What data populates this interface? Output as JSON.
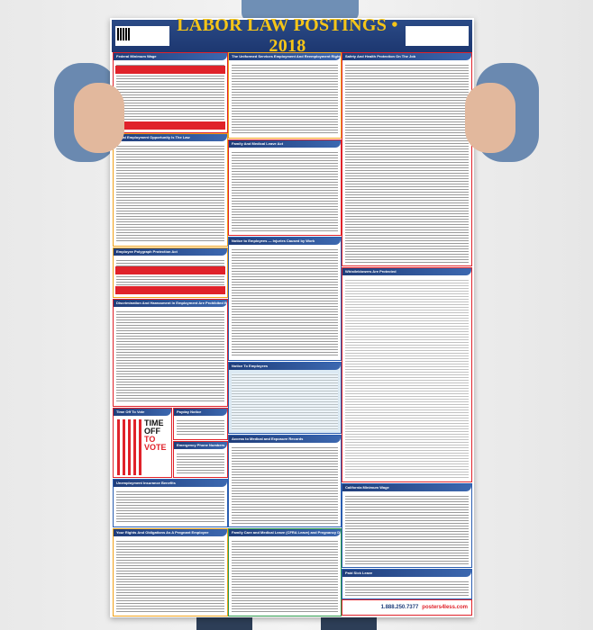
{
  "poster": {
    "title": "LABOR LAW POSTINGS • 2018",
    "phone": "1.888.250.7377",
    "logo_text": "posters4less.com",
    "sections": {
      "federal_min_wage": "Federal Minimum Wage",
      "eeo": "Equal Employment Opportunity Is The Law",
      "polygraph": "Employee Polygraph Protection Act",
      "discrimination": "Discrimination And Harassment In Employment Are Prohibited By Law",
      "time_off_vote": "Time Off To Vote",
      "time_off_vote_headline_1": "TIME OFF",
      "time_off_vote_headline_2": "TO VOTE",
      "payday": "Payday Notice",
      "emergency": "Emergency Phone Numbers",
      "unemployment": "Unemployment Insurance Benefits",
      "pregnant": "Your Rights And Obligations As A Pregnant Employee",
      "userra": "The Uniformed Services Employment And Reemployment Rights Act",
      "fmla": "Family And Medical Leave Act",
      "injuries": "Notice to Employees — Injuries Caused by Work",
      "notice": "Notice To Employees",
      "access": "Access to Medical and Exposure Records",
      "cfra": "Family Care and Medical Leave (CFRA Leave) and Pregnancy Disability Leave",
      "safety": "Safety And Health Protection On The Job",
      "whistle": "Whistleblowers Are Protected",
      "ca_min_wage": "California Minimum Wage",
      "sick": "Paid Sick Leave"
    }
  },
  "colors": {
    "header": "#1f3d7a",
    "title": "#f5c518",
    "border": "#e0222a"
  }
}
